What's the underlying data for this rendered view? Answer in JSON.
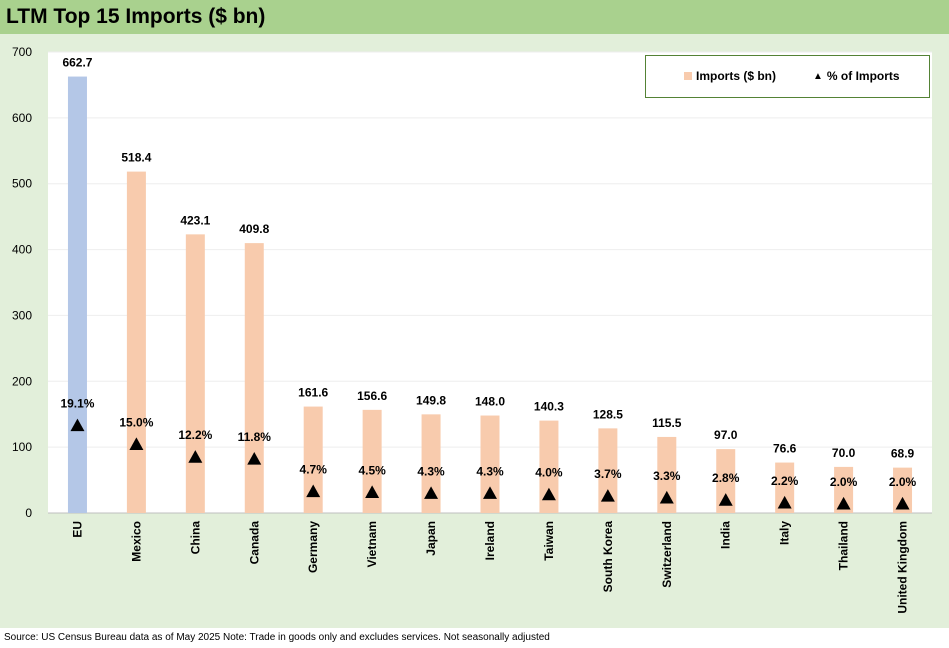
{
  "header": {
    "title": "LTM Top 15 Imports ($ bn)"
  },
  "footer": {
    "source": "Source: US Census Bureau data as of May 2025 Note: Trade in goods only and excludes services. Not seasonally adjusted"
  },
  "legend": {
    "imports_label": "Imports ($ bn)",
    "percent_label": "% of Imports"
  },
  "colors": {
    "eu_bar": "#b4c7e7",
    "bar": "#f8cbad",
    "marker": "#000000",
    "title_bg": "#a9d18e",
    "chart_bg": "#e2efda"
  },
  "chart_data": {
    "type": "bar",
    "title": "LTM Top 15 Imports ($ bn)",
    "categories": [
      "EU",
      "Mexico",
      "China",
      "Canada",
      "Germany",
      "Vietnam",
      "Japan",
      "Ireland",
      "Taiwan",
      "South Korea",
      "Switzerland",
      "India",
      "Italy",
      "Thailand",
      "United Kingdom"
    ],
    "series": [
      {
        "name": "Imports ($ bn)",
        "kind": "bar",
        "values": [
          662.7,
          518.4,
          423.1,
          409.8,
          161.6,
          156.6,
          149.8,
          148.0,
          140.3,
          128.5,
          115.5,
          97.0,
          76.6,
          70.0,
          68.9
        ],
        "labels": [
          "662.7",
          "518.4",
          "423.1",
          "409.8",
          "161.6",
          "156.6",
          "149.8",
          "148.0",
          "140.3",
          "128.5",
          "115.5",
          "97.0",
          "76.6",
          "70.0",
          "68.9"
        ]
      },
      {
        "name": "% of Imports",
        "kind": "marker",
        "values": [
          19.1,
          15.0,
          12.2,
          11.8,
          4.7,
          4.5,
          4.3,
          4.3,
          4.0,
          3.7,
          3.3,
          2.8,
          2.2,
          2.0,
          2.0
        ],
        "labels": [
          "19.1%",
          "15.0%",
          "12.2%",
          "11.8%",
          "4.7%",
          "4.5%",
          "4.3%",
          "4.3%",
          "4.0%",
          "3.7%",
          "3.3%",
          "2.8%",
          "2.2%",
          "2.0%",
          "2.0%"
        ]
      }
    ],
    "ylim": [
      0,
      700
    ],
    "yticks": [
      "0",
      "100",
      "200",
      "300",
      "400",
      "500",
      "600",
      "700"
    ],
    "grid": true,
    "legend_position": "top-right"
  }
}
